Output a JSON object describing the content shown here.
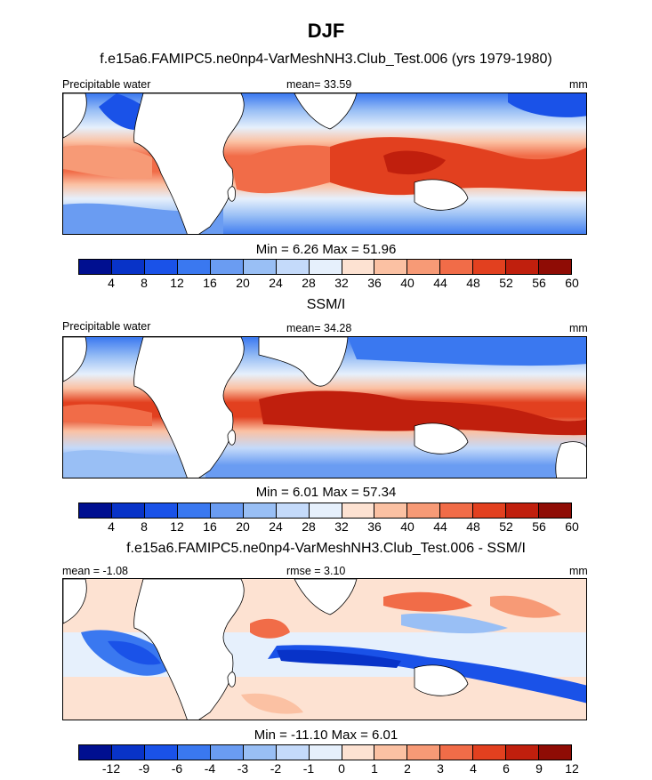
{
  "title": "DJF",
  "panels": [
    {
      "heading": "f.e15a6.FAMIPC5.ne0np4-VarMeshNH3.Club_Test.006 (yrs 1979-1980)",
      "left_label": "Precipitable water",
      "center_label": "mean=  33.59",
      "right_label": "mm",
      "minmax": "Min =   6.26 Max =  51.96"
    },
    {
      "heading": "SSM/I",
      "left_label": "Precipitable water",
      "center_label": "mean=  34.28",
      "right_label": "mm",
      "minmax": "Min =   6.01 Max =  57.34"
    },
    {
      "heading": "f.e15a6.FAMIPC5.ne0np4-VarMeshNH3.Club_Test.006 - SSM/I",
      "left_label": "mean =  -1.08",
      "center_label": "rmse =   3.10",
      "right_label": "mm",
      "minmax": "Min = -11.10 Max =   6.01"
    }
  ],
  "colorbar_abs": {
    "ticks": [
      "4",
      "8",
      "12",
      "16",
      "20",
      "24",
      "28",
      "32",
      "36",
      "40",
      "44",
      "48",
      "52",
      "56",
      "60"
    ]
  },
  "colorbar_diff": {
    "ticks": [
      "-12",
      "-9",
      "-6",
      "-4",
      "-3",
      "-2",
      "-1",
      "0",
      "1",
      "2",
      "3",
      "4",
      "6",
      "9",
      "12"
    ]
  },
  "palette": [
    "#000f90",
    "#0833c8",
    "#1a52e8",
    "#3a78f0",
    "#6a9cf2",
    "#99bff5",
    "#c4dafa",
    "#e6f0fc",
    "#fde2d2",
    "#fbc1a3",
    "#f79a76",
    "#f16c48",
    "#e2401f",
    "#c01f0d",
    "#8f0c05"
  ]
}
